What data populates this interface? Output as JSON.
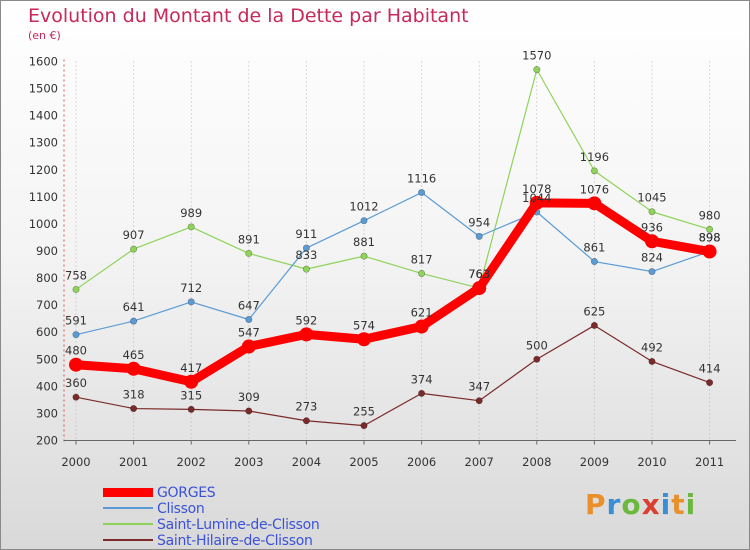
{
  "header": {
    "title": "Evolution du Montant de la Dette par Habitant",
    "subtitle": "(en €)"
  },
  "brand": {
    "letters": [
      "P",
      "r",
      "o",
      "x",
      "i",
      "t",
      "i"
    ]
  },
  "chart_data": {
    "type": "line",
    "x": [
      "2000",
      "2001",
      "2002",
      "2003",
      "2004",
      "2005",
      "2006",
      "2007",
      "2008",
      "2009",
      "2010",
      "2011"
    ],
    "ylim": [
      200,
      1600
    ],
    "yticks": [
      200,
      300,
      400,
      500,
      600,
      700,
      800,
      900,
      1000,
      1100,
      1200,
      1300,
      1400,
      1500,
      1600
    ],
    "grid": "vertical-dotted",
    "legend_position": "bottom-left",
    "series": [
      {
        "name": "GORGES",
        "color": "#ff0000",
        "values": [
          480,
          465,
          417,
          547,
          592,
          574,
          621,
          763,
          1078,
          1076,
          936,
          898
        ]
      },
      {
        "name": "Clisson",
        "color": "#5b9bd5",
        "values": [
          591,
          641,
          712,
          647,
          911,
          1012,
          1116,
          954,
          1044,
          861,
          824,
          898
        ]
      },
      {
        "name": "Saint-Lumine-de-Clisson",
        "color": "#8fd35a",
        "values": [
          758,
          907,
          989,
          891,
          833,
          881,
          817,
          763,
          1570,
          1196,
          1045,
          980
        ]
      },
      {
        "name": "Saint-Hilaire-de-Clisson",
        "color": "#7a2a2a",
        "values": [
          360,
          318,
          315,
          309,
          273,
          255,
          374,
          347,
          500,
          625,
          492,
          414
        ]
      }
    ]
  }
}
